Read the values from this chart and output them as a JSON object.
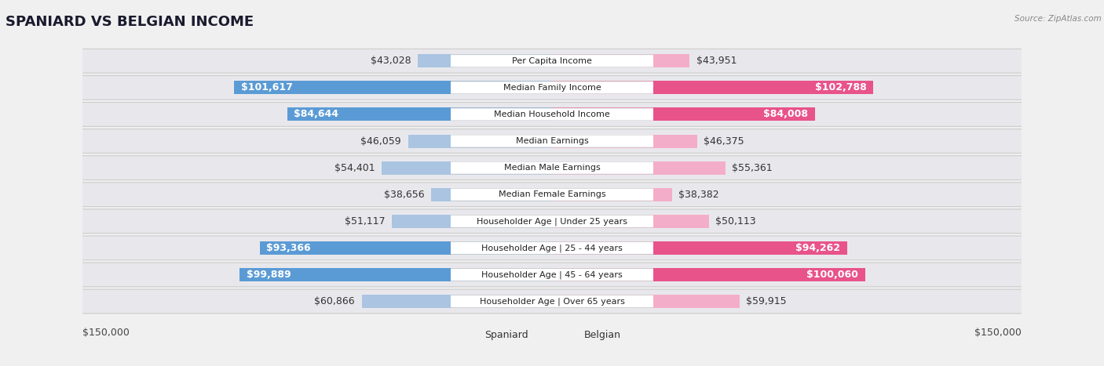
{
  "title": "SPANIARD VS BELGIAN INCOME",
  "source": "Source: ZipAtlas.com",
  "categories": [
    "Per Capita Income",
    "Median Family Income",
    "Median Household Income",
    "Median Earnings",
    "Median Male Earnings",
    "Median Female Earnings",
    "Householder Age | Under 25 years",
    "Householder Age | 25 - 44 years",
    "Householder Age | 45 - 64 years",
    "Householder Age | Over 65 years"
  ],
  "spaniard_values": [
    43028,
    101617,
    84644,
    46059,
    54401,
    38656,
    51117,
    93366,
    99889,
    60866
  ],
  "belgian_values": [
    43951,
    102788,
    84008,
    46375,
    55361,
    38382,
    50113,
    94262,
    100060,
    59915
  ],
  "spaniard_labels": [
    "$43,028",
    "$101,617",
    "$84,644",
    "$46,059",
    "$54,401",
    "$38,656",
    "$51,117",
    "$93,366",
    "$99,889",
    "$60,866"
  ],
  "belgian_labels": [
    "$43,951",
    "$102,788",
    "$84,008",
    "$46,375",
    "$55,361",
    "$38,382",
    "$50,113",
    "$94,262",
    "$100,060",
    "$59,915"
  ],
  "spaniard_color_light": "#aac4e2",
  "spaniard_color_dark": "#5b9bd5",
  "belgian_color_light": "#f4adc8",
  "belgian_color_dark": "#e8538a",
  "threshold": 70000,
  "max_value": 150000,
  "bg_color": "#f0f0f0",
  "row_color": "#e8e8ec",
  "title_fontsize": 13,
  "label_fontsize": 9,
  "cat_fontsize": 8
}
